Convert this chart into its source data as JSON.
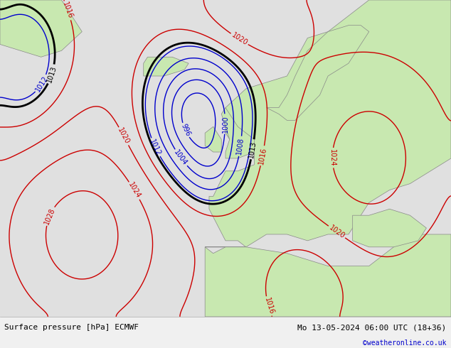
{
  "title_left": "Surface pressure [hPa] ECMWF",
  "title_right": "Mo 13-05-2024 06:00 UTC (18+36)",
  "credit": "©weatheronline.co.uk",
  "bg_map_color": "#d0e8d0",
  "bg_ocean_color": "#e8e8e8",
  "footer_bg": "#f0f0f0",
  "contour_black_color": "#000000",
  "contour_blue_color": "#0000cc",
  "contour_red_color": "#cc0000",
  "label_fontsize": 7,
  "footer_fontsize": 8,
  "credit_fontsize": 7,
  "credit_color": "#0000cc"
}
